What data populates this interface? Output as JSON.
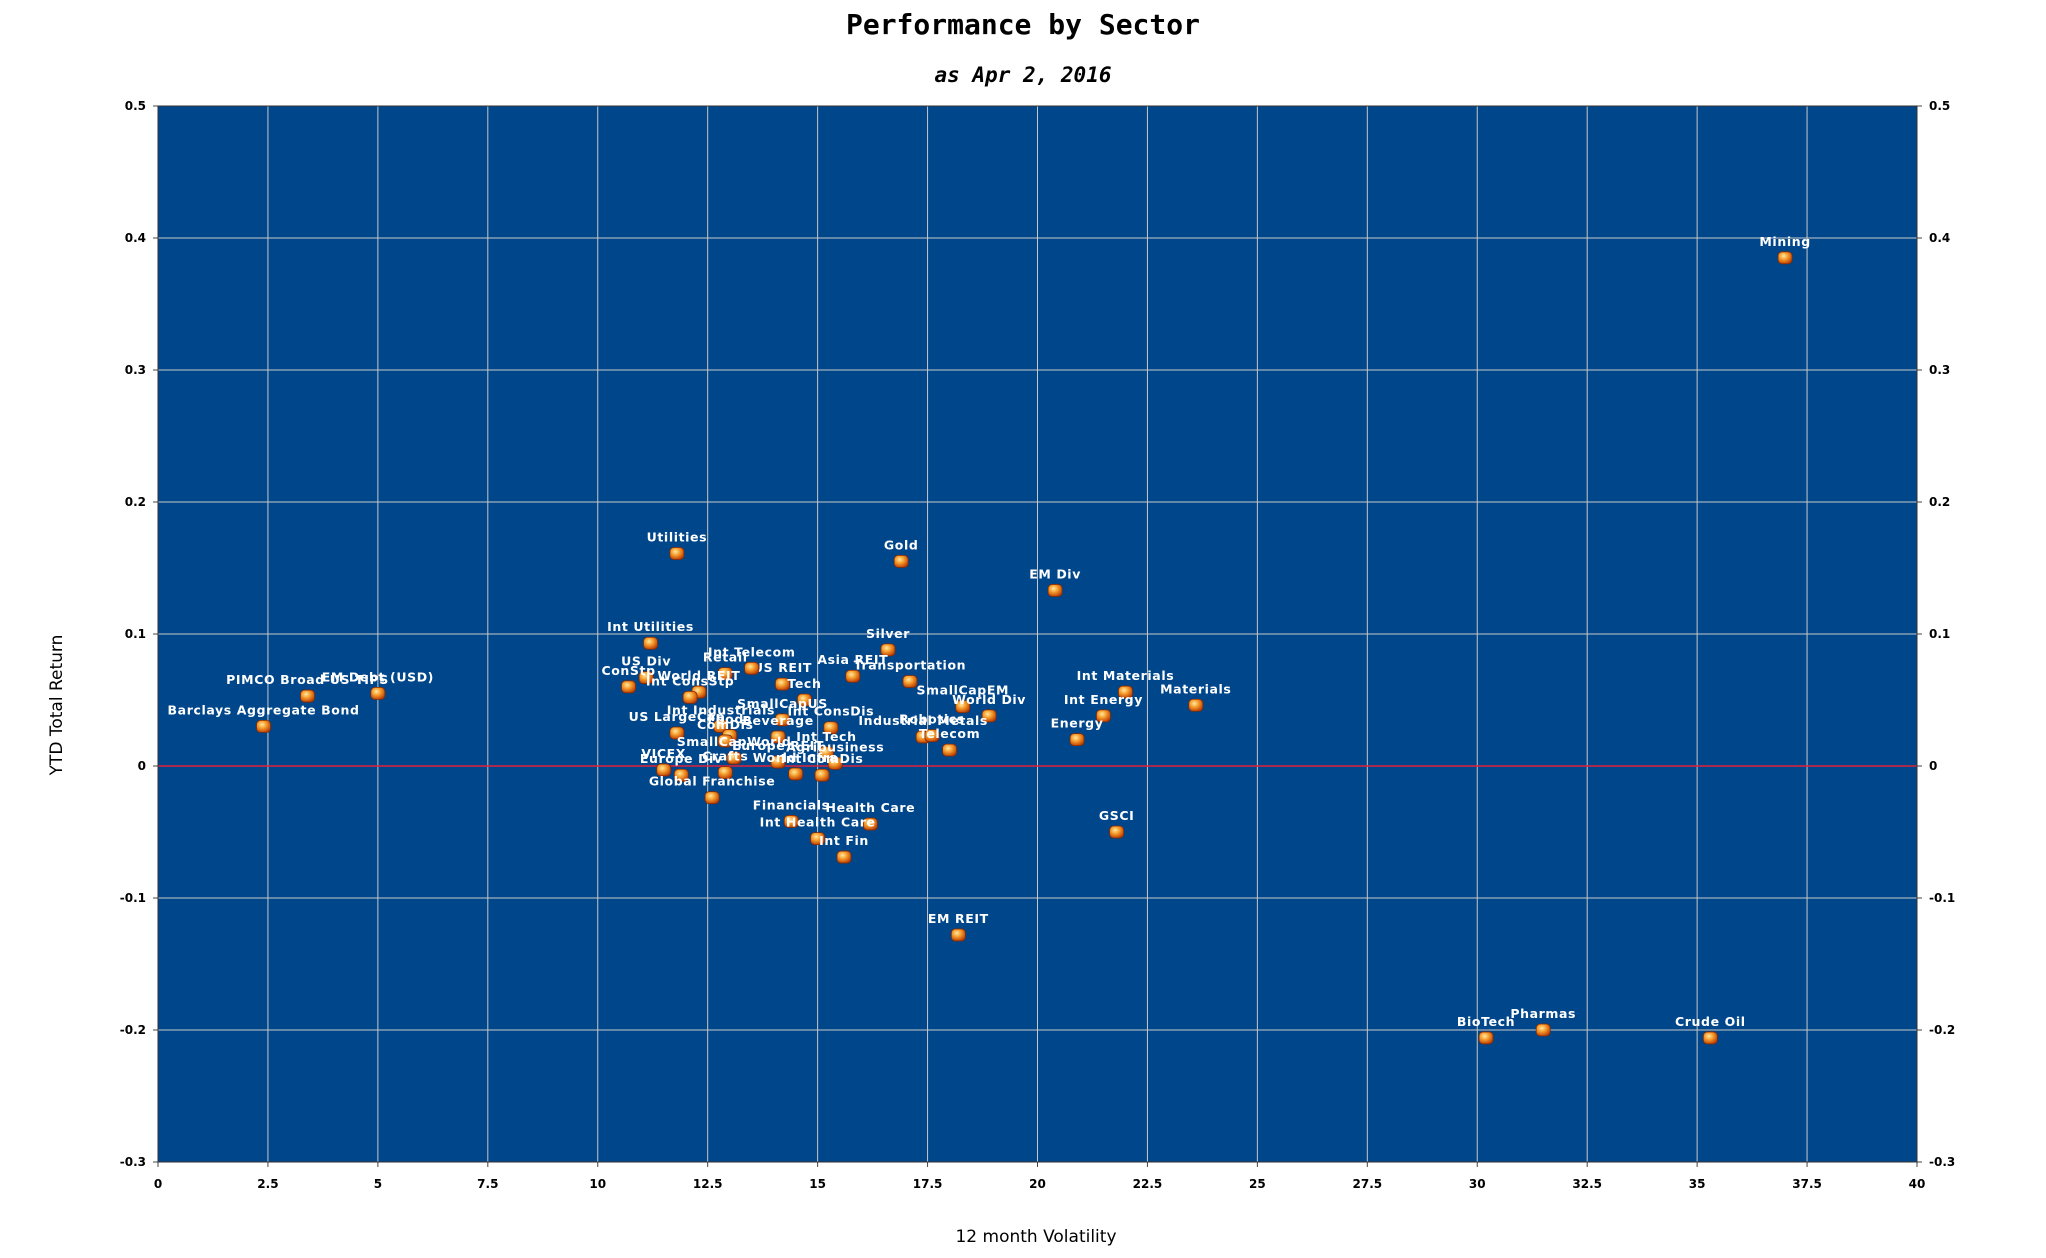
{
  "chart_data": {
    "type": "scatter",
    "title": "Performance by Sector",
    "subtitle": "as Apr 2, 2016",
    "xlabel": "12 month Volatility",
    "ylabel": "YTD Total Return",
    "xlim": [
      0,
      40
    ],
    "ylim": [
      -0.3,
      0.5
    ],
    "x_ticks": [
      "0",
      "2.5",
      "5",
      "7.5",
      "10",
      "12.5",
      "15",
      "17.5",
      "20",
      "22.5",
      "25",
      "27.5",
      "30",
      "32.5",
      "35",
      "37.5",
      "40"
    ],
    "y_ticks": [
      "0.5",
      "0.4",
      "0.3",
      "0.2",
      "0.1",
      "0",
      "-0.1",
      "-0.2",
      "-0.3"
    ],
    "grid": true,
    "plot_background": "#00468B",
    "grid_color": "#C8C8C8",
    "zero_line_color": "#E0203A",
    "marker_color": "#E8620A",
    "points": [
      {
        "name": "Mining",
        "x": 37.0,
        "y": 0.385
      },
      {
        "name": "Utilities",
        "x": 11.8,
        "y": 0.161
      },
      {
        "name": "Gold",
        "x": 16.9,
        "y": 0.155
      },
      {
        "name": "EM Div",
        "x": 20.4,
        "y": 0.133
      },
      {
        "name": "Int Utilities",
        "x": 11.2,
        "y": 0.093
      },
      {
        "name": "Silver",
        "x": 16.6,
        "y": 0.088
      },
      {
        "name": "EM Debt (USD)",
        "x": 5.0,
        "y": 0.055
      },
      {
        "name": "US Div",
        "x": 11.1,
        "y": 0.067
      },
      {
        "name": "ConStp",
        "x": 10.7,
        "y": 0.06
      },
      {
        "name": "Retail",
        "x": 12.9,
        "y": 0.07
      },
      {
        "name": "Asia REIT",
        "x": 15.8,
        "y": 0.068
      },
      {
        "name": "US REIT",
        "x": 14.2,
        "y": 0.062
      },
      {
        "name": "World REIT",
        "x": 12.3,
        "y": 0.056
      },
      {
        "name": "Int Telecom",
        "x": 13.5,
        "y": 0.074
      },
      {
        "name": "Int ConsStp",
        "x": 12.1,
        "y": 0.052
      },
      {
        "name": "Tech",
        "x": 14.7,
        "y": 0.05
      },
      {
        "name": "Transportation",
        "x": 17.1,
        "y": 0.064
      },
      {
        "name": "SmallCapEM",
        "x": 18.3,
        "y": 0.045
      },
      {
        "name": "World Div",
        "x": 18.9,
        "y": 0.038
      },
      {
        "name": "Int Materials",
        "x": 22.0,
        "y": 0.056
      },
      {
        "name": "Materials",
        "x": 23.6,
        "y": 0.046
      },
      {
        "name": "Int Energy",
        "x": 21.5,
        "y": 0.038
      },
      {
        "name": "PIMCO Broad US TIPS",
        "x": 3.4,
        "y": 0.053
      },
      {
        "name": "Barclays Aggregate Bond",
        "x": 2.4,
        "y": 0.03
      },
      {
        "name": "Int Industrials",
        "x": 12.8,
        "y": 0.03
      },
      {
        "name": "SmallCapUS",
        "x": 14.2,
        "y": 0.035
      },
      {
        "name": "Int ConsDis",
        "x": 15.3,
        "y": 0.029
      },
      {
        "name": "US LargeCap",
        "x": 11.8,
        "y": 0.025
      },
      {
        "name": "Foods",
        "x": 13.0,
        "y": 0.023
      },
      {
        "name": "Beverage",
        "x": 14.1,
        "y": 0.022
      },
      {
        "name": "ComDis",
        "x": 12.9,
        "y": 0.019
      },
      {
        "name": "Industrial Metals",
        "x": 17.4,
        "y": 0.022
      },
      {
        "name": "Energy",
        "x": 20.9,
        "y": 0.02
      },
      {
        "name": "Robotics",
        "x": 17.6,
        "y": 0.023
      },
      {
        "name": "Telecom",
        "x": 18.0,
        "y": 0.012
      },
      {
        "name": "Int Tech",
        "x": 15.2,
        "y": 0.01
      },
      {
        "name": "SmallCapWorld",
        "x": 13.1,
        "y": 0.006
      },
      {
        "name": "Europe REIT",
        "x": 14.1,
        "y": 0.003
      },
      {
        "name": "Agribusiness",
        "x": 15.4,
        "y": 0.002
      },
      {
        "name": "VICEX",
        "x": 11.5,
        "y": -0.003
      },
      {
        "name": "Europe Div",
        "x": 11.9,
        "y": -0.007
      },
      {
        "name": "Crafts",
        "x": 12.9,
        "y": -0.005
      },
      {
        "name": "World Infra",
        "x": 14.5,
        "y": -0.006
      },
      {
        "name": "Int ComDis",
        "x": 15.1,
        "y": -0.007
      },
      {
        "name": "Global Franchise",
        "x": 12.6,
        "y": -0.024
      },
      {
        "name": "Financials",
        "x": 14.4,
        "y": -0.042
      },
      {
        "name": "Health Care",
        "x": 16.2,
        "y": -0.044
      },
      {
        "name": "Int Health Care",
        "x": 15.0,
        "y": -0.055
      },
      {
        "name": "GSCI",
        "x": 21.8,
        "y": -0.05
      },
      {
        "name": "Int Fin",
        "x": 15.6,
        "y": -0.069
      },
      {
        "name": "EM REIT",
        "x": 18.2,
        "y": -0.128
      },
      {
        "name": "BioTech",
        "x": 30.2,
        "y": -0.206
      },
      {
        "name": "Pharmas",
        "x": 31.5,
        "y": -0.2
      },
      {
        "name": "Crude Oil",
        "x": 35.3,
        "y": -0.206
      }
    ]
  }
}
